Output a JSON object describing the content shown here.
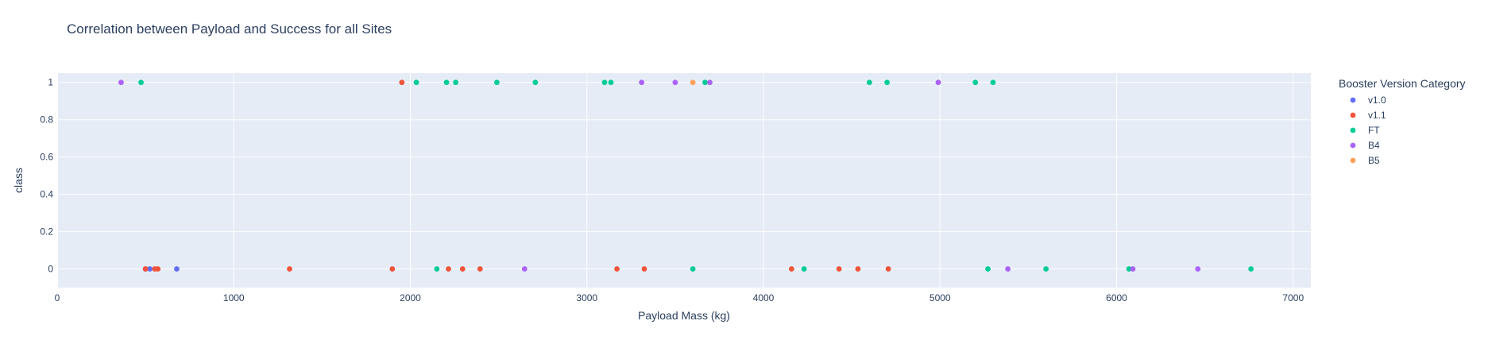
{
  "chart_data": {
    "type": "scatter",
    "title": "Correlation between Payload and Success for all Sites",
    "xlabel": "Payload Mass (kg)",
    "ylabel": "class",
    "xlim": [
      0,
      7100
    ],
    "ylim": [
      -0.1,
      1.05
    ],
    "xticks": [
      0,
      1000,
      2000,
      3000,
      4000,
      5000,
      6000,
      7000
    ],
    "xtick_labels": [
      "0",
      "1000",
      "2000",
      "3000",
      "4000",
      "5000",
      "6000",
      "7000"
    ],
    "yticks": [
      0,
      0.2,
      0.4,
      0.6,
      0.8,
      1
    ],
    "ytick_labels": [
      "0",
      "0.2",
      "0.4",
      "0.6",
      "0.8",
      "1"
    ],
    "grid": true,
    "legend": {
      "title": "Booster Version Category",
      "placement": "right"
    },
    "series": [
      {
        "name": "v1.0",
        "color": "#636efa",
        "points": [
          [
            500,
            0
          ],
          [
            525,
            0
          ],
          [
            677,
            0
          ]
        ]
      },
      {
        "name": "v1.1",
        "color": "#ef553b",
        "points": [
          [
            500,
            0
          ],
          [
            553,
            0
          ],
          [
            570,
            0
          ],
          [
            1316,
            0
          ],
          [
            1898,
            0
          ],
          [
            1952,
            1
          ],
          [
            2216,
            0
          ],
          [
            2296,
            0
          ],
          [
            2395,
            0
          ],
          [
            3170,
            0
          ],
          [
            3325,
            0
          ],
          [
            4159,
            0
          ],
          [
            4428,
            0
          ],
          [
            4535,
            0
          ],
          [
            4707,
            0
          ]
        ]
      },
      {
        "name": "FT",
        "color": "#00cc96",
        "points": [
          [
            475,
            1
          ],
          [
            2034,
            1
          ],
          [
            2205,
            1
          ],
          [
            2257,
            1
          ],
          [
            2490,
            1
          ],
          [
            2708,
            1
          ],
          [
            3100,
            1
          ],
          [
            3136,
            1
          ],
          [
            3669,
            1
          ],
          [
            4600,
            1
          ],
          [
            4700,
            1
          ],
          [
            5200,
            1
          ],
          [
            5300,
            1
          ],
          [
            2150,
            0
          ],
          [
            3600,
            0
          ],
          [
            4230,
            0
          ],
          [
            5271,
            0
          ],
          [
            5600,
            0
          ],
          [
            6070,
            0
          ],
          [
            6761,
            0
          ]
        ]
      },
      {
        "name": "B4",
        "color": "#ab63fa",
        "points": [
          [
            362,
            1
          ],
          [
            3310,
            1
          ],
          [
            3500,
            1
          ],
          [
            3696,
            1
          ],
          [
            4990,
            1
          ],
          [
            2647,
            0
          ],
          [
            5384,
            0
          ],
          [
            6092,
            0
          ],
          [
            6460,
            0
          ]
        ]
      },
      {
        "name": "B5",
        "color": "#ffa15a",
        "points": [
          [
            3600,
            1
          ]
        ]
      }
    ]
  }
}
